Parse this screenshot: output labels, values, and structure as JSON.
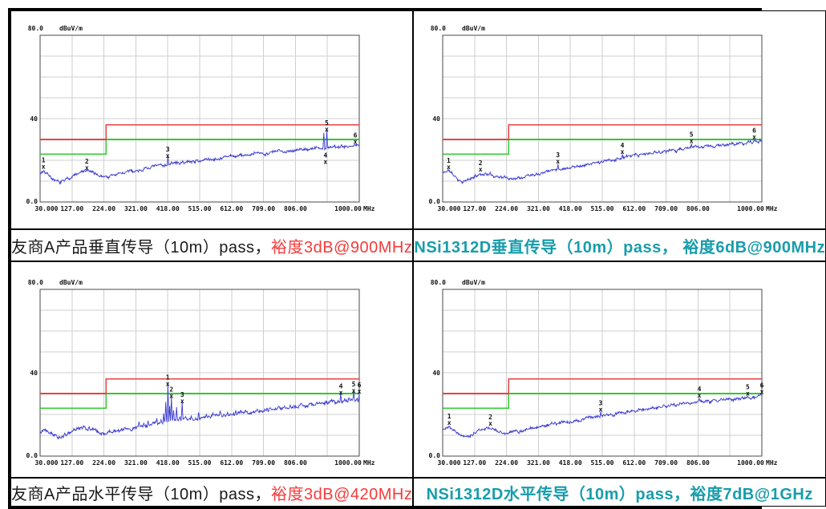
{
  "page": {
    "background": "#ffffff",
    "border_color": "#000000"
  },
  "colors": {
    "limit_red": "#e94040",
    "limit_green": "#2fca2f",
    "trace_blue": "#3b3bd1",
    "grid": "#cfcfcf",
    "plot_border": "#4a4a4a",
    "caption_black": "#1a1a1a",
    "caption_red": "#f63b3b",
    "caption_teal": "#189dab"
  },
  "chart_data": {
    "type": "line",
    "shared_axis": {
      "y_top_label": "80.0",
      "y_unit": "dBuV/m",
      "y_mid_label": "40",
      "y_bottom_label": "0.0",
      "ylim": [
        0,
        80
      ],
      "y_grid_step": 10,
      "xlim": [
        30,
        1000
      ],
      "x_unit": "MHz",
      "x_tick_values": [
        30,
        127,
        224,
        321,
        418,
        515,
        612,
        709,
        806,
        1000
      ],
      "x_tick_labels": [
        "30.000",
        "127.00",
        "224.00",
        "321.00",
        "418.00",
        "515.00",
        "612.00",
        "709.00",
        "806.00",
        "1000.00"
      ],
      "x_grid_values": [
        127,
        224,
        321,
        418,
        515,
        612,
        709,
        806,
        903
      ],
      "limit_red": {
        "low_level": 30,
        "high_level": 37,
        "step_freq": 230.5
      },
      "limit_green": {
        "low_level": 23,
        "high_level": 30,
        "step_freq": 230.5
      }
    },
    "charts": [
      {
        "name": "vendorA-vertical-10m",
        "caption": [
          {
            "text": "友商A产品垂直传导（10m）pass，",
            "color": "#1a1a1a",
            "bold": false
          },
          {
            "text": "裕度3dB@900MHz",
            "color": "#f63b3b",
            "bold": false
          }
        ],
        "noise_seed": 7,
        "noise_amp": 0.55,
        "trace_anchors": [
          [
            30,
            13.5
          ],
          [
            42,
            15.2
          ],
          [
            55,
            13.5
          ],
          [
            75,
            10
          ],
          [
            90,
            9
          ],
          [
            105,
            10.5
          ],
          [
            130,
            12.5
          ],
          [
            160,
            14.5
          ],
          [
            175,
            15
          ],
          [
            195,
            13.5
          ],
          [
            215,
            12.5
          ],
          [
            235,
            12
          ],
          [
            255,
            13
          ],
          [
            300,
            14.5
          ],
          [
            350,
            16
          ],
          [
            418,
            18.3
          ],
          [
            470,
            19
          ],
          [
            520,
            20
          ],
          [
            570,
            21
          ],
          [
            612,
            21.8
          ],
          [
            660,
            22.5
          ],
          [
            709,
            23.5
          ],
          [
            760,
            24.3
          ],
          [
            806,
            25
          ],
          [
            850,
            25.5
          ],
          [
            900,
            26
          ],
          [
            950,
            26.8
          ],
          [
            1000,
            27.3
          ]
        ],
        "spikes": [
          [
            418,
            21.5
          ],
          [
            893,
            33.2
          ],
          [
            901,
            34.3
          ],
          [
            925,
            27.5
          ]
        ],
        "markers": [
          {
            "n": 1,
            "f": 40,
            "v": 16.3,
            "below": false
          },
          {
            "n": 2,
            "f": 172,
            "v": 15.8,
            "below": false
          },
          {
            "n": 3,
            "f": 418,
            "v": 21.5,
            "below": false
          },
          {
            "n": 4,
            "f": 897,
            "v": 25.2,
            "below": true
          },
          {
            "n": 5,
            "f": 901,
            "v": 34.3,
            "below": false
          },
          {
            "n": 6,
            "f": 988,
            "v": 28.2,
            "below": false
          }
        ]
      },
      {
        "name": "NSi1312D-vertical-10m",
        "caption": [
          {
            "text": "NSi1312D垂直传导（10m）pass，",
            "color": "#189dab",
            "bold": true
          },
          {
            "text": " 裕度6dB@900MHz",
            "color": "#189dab",
            "bold": true
          }
        ],
        "noise_seed": 11,
        "noise_amp": 0.5,
        "trace_anchors": [
          [
            30,
            13.8
          ],
          [
            48,
            15.3
          ],
          [
            62,
            13
          ],
          [
            80,
            10.5
          ],
          [
            95,
            9.8
          ],
          [
            115,
            11
          ],
          [
            140,
            13.3
          ],
          [
            160,
            13.6
          ],
          [
            185,
            12.8
          ],
          [
            210,
            12
          ],
          [
            235,
            11.2
          ],
          [
            258,
            11.8
          ],
          [
            300,
            13.3
          ],
          [
            350,
            15
          ],
          [
            400,
            16.3
          ],
          [
            450,
            17.5
          ],
          [
            500,
            18.8
          ],
          [
            550,
            20.3
          ],
          [
            600,
            21.8
          ],
          [
            650,
            23
          ],
          [
            700,
            24.3
          ],
          [
            750,
            25.3
          ],
          [
            806,
            26.2
          ],
          [
            850,
            26.8
          ],
          [
            900,
            27.5
          ],
          [
            950,
            28.3
          ],
          [
            1000,
            29
          ]
        ],
        "spikes": [
          [
            380,
            18.2
          ],
          [
            576,
            22.9
          ],
          [
            786,
            28
          ],
          [
            977,
            30
          ]
        ],
        "markers": [
          {
            "n": 1,
            "f": 48,
            "v": 16.2,
            "below": false
          },
          {
            "n": 2,
            "f": 145,
            "v": 15.0,
            "below": false
          },
          {
            "n": 3,
            "f": 380,
            "v": 18.8,
            "below": false
          },
          {
            "n": 4,
            "f": 576,
            "v": 23.5,
            "below": false
          },
          {
            "n": 5,
            "f": 786,
            "v": 28.6,
            "below": false
          },
          {
            "n": 6,
            "f": 977,
            "v": 30.6,
            "below": false
          }
        ]
      },
      {
        "name": "vendorA-horizontal-10m",
        "caption": [
          {
            "text": "友商A产品水平传导（10m）pass，",
            "color": "#1a1a1a",
            "bold": false
          },
          {
            "text": "裕度3dB@420MHz",
            "color": "#f63b3b",
            "bold": false
          }
        ],
        "noise_seed": 13,
        "noise_amp": 0.6,
        "trace_anchors": [
          [
            30,
            12
          ],
          [
            45,
            13.3
          ],
          [
            60,
            12.3
          ],
          [
            80,
            9.5
          ],
          [
            92,
            8.7
          ],
          [
            110,
            10.3
          ],
          [
            135,
            12.3
          ],
          [
            165,
            13.8
          ],
          [
            180,
            13.3
          ],
          [
            200,
            12
          ],
          [
            215,
            10.8
          ],
          [
            240,
            11.3
          ],
          [
            270,
            12.3
          ],
          [
            320,
            13.8
          ],
          [
            370,
            15
          ],
          [
            418,
            16.8
          ],
          [
            460,
            17
          ],
          [
            510,
            18
          ],
          [
            560,
            19
          ],
          [
            612,
            20
          ],
          [
            660,
            21
          ],
          [
            709,
            22
          ],
          [
            760,
            23
          ],
          [
            806,
            24
          ],
          [
            850,
            24.8
          ],
          [
            900,
            25.5
          ],
          [
            950,
            26.3
          ],
          [
            1000,
            26.8
          ]
        ],
        "spikes": [
          [
            330,
            16.5
          ],
          [
            345,
            15.8
          ],
          [
            358,
            17
          ],
          [
            372,
            16.3
          ],
          [
            385,
            18.2
          ],
          [
            398,
            17.5
          ],
          [
            406,
            20.5
          ],
          [
            412,
            26
          ],
          [
            418,
            34
          ],
          [
            424,
            24
          ],
          [
            429,
            28.3
          ],
          [
            436,
            22
          ],
          [
            445,
            23.5
          ],
          [
            455,
            19
          ],
          [
            462,
            25.8
          ],
          [
            472,
            19
          ],
          [
            490,
            19.5
          ],
          [
            512,
            21
          ],
          [
            535,
            20
          ],
          [
            555,
            21
          ],
          [
            578,
            21.8
          ],
          [
            600,
            21
          ],
          [
            625,
            21.8
          ],
          [
            655,
            22
          ],
          [
            690,
            22.5
          ],
          [
            720,
            23
          ],
          [
            755,
            23.8
          ],
          [
            790,
            24.5
          ],
          [
            825,
            25
          ],
          [
            870,
            25.8
          ],
          [
            915,
            26.5
          ],
          [
            944,
            29.8
          ],
          [
            955,
            27.5
          ],
          [
            968,
            28
          ],
          [
            983,
            30.8
          ],
          [
            993,
            28
          ],
          [
            1000,
            30.3
          ]
        ],
        "markers": [
          {
            "n": 1,
            "f": 418,
            "v": 34.0,
            "below": false
          },
          {
            "n": 2,
            "f": 429,
            "v": 28.3,
            "below": false
          },
          {
            "n": 3,
            "f": 462,
            "v": 25.8,
            "below": false
          },
          {
            "n": 4,
            "f": 944,
            "v": 29.8,
            "below": false
          },
          {
            "n": 5,
            "f": 983,
            "v": 30.8,
            "below": false
          },
          {
            "n": 6,
            "f": 1000,
            "v": 30.3,
            "below": false
          }
        ]
      },
      {
        "name": "NSi1312D-horizontal-10m",
        "caption": [
          {
            "text": "NSi1312D水平传导（10m）pass，",
            "color": "#189dab",
            "bold": true
          },
          {
            "text": "裕度7dB@1GHz",
            "color": "#189dab",
            "bold": true
          }
        ],
        "noise_seed": 17,
        "noise_amp": 0.5,
        "trace_anchors": [
          [
            30,
            12.8
          ],
          [
            50,
            14.3
          ],
          [
            68,
            12
          ],
          [
            85,
            9.8
          ],
          [
            100,
            9.3
          ],
          [
            120,
            10.8
          ],
          [
            145,
            12.8
          ],
          [
            170,
            13.3
          ],
          [
            195,
            12.3
          ],
          [
            225,
            10.8
          ],
          [
            250,
            11.3
          ],
          [
            300,
            13
          ],
          [
            350,
            14.5
          ],
          [
            418,
            16.3
          ],
          [
            470,
            18
          ],
          [
            510,
            19.3
          ],
          [
            560,
            20.8
          ],
          [
            612,
            22
          ],
          [
            660,
            23.2
          ],
          [
            709,
            24.2
          ],
          [
            760,
            25.2
          ],
          [
            806,
            26
          ],
          [
            850,
            26.6
          ],
          [
            900,
            27.3
          ],
          [
            950,
            28
          ],
          [
            1000,
            28.8
          ]
        ],
        "spikes": [
          [
            510,
            21.2
          ],
          [
            810,
            27.8
          ],
          [
            957,
            28.8
          ],
          [
            998,
            29.6
          ]
        ],
        "markers": [
          {
            "n": 1,
            "f": 50,
            "v": 15.3,
            "below": false
          },
          {
            "n": 2,
            "f": 175,
            "v": 15.0,
            "below": false
          },
          {
            "n": 3,
            "f": 510,
            "v": 21.8,
            "below": false
          },
          {
            "n": 4,
            "f": 810,
            "v": 28.4,
            "below": false
          },
          {
            "n": 5,
            "f": 957,
            "v": 29.4,
            "below": false
          },
          {
            "n": 6,
            "f": 1000,
            "v": 30.2,
            "below": false
          }
        ]
      }
    ]
  }
}
